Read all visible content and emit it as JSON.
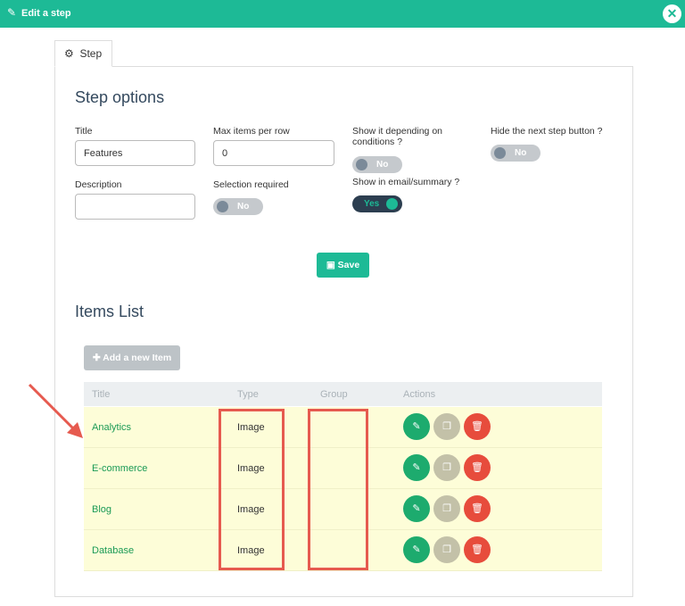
{
  "header": {
    "title": "Edit a step",
    "icon": "pencil-icon",
    "close_icon": "close-icon"
  },
  "tab": {
    "label": "Step",
    "icon": "gear-icon"
  },
  "options": {
    "heading": "Step options",
    "title_label": "Title",
    "title_value": "Features",
    "max_label": "Max items per row",
    "max_value": "0",
    "description_label": "Description",
    "description_value": "",
    "selection_label": "Selection required",
    "selection_value": "No",
    "conditions_label": "Show it depending on conditions ?",
    "conditions_value": "No",
    "email_label": "Show in email/summary ?",
    "email_value": "Yes",
    "hide_next_label": "Hide the next step button ?",
    "hide_next_value": "No",
    "save_label": "Save"
  },
  "items": {
    "heading": "Items List",
    "add_label": "Add a new Item",
    "columns": [
      "Title",
      "Type",
      "Group",
      "Actions"
    ],
    "rows": [
      {
        "title": "Analytics",
        "type": "Image",
        "group": ""
      },
      {
        "title": "E-commerce",
        "type": "Image",
        "group": ""
      },
      {
        "title": "Blog",
        "type": "Image",
        "group": ""
      },
      {
        "title": "Database",
        "type": "Image",
        "group": ""
      }
    ]
  },
  "colors": {
    "accent": "#1dba96",
    "annotation": "#e65a4f",
    "edit": "#1dab6e",
    "duplicate": "#c3c1a8",
    "delete": "#e74c3c"
  }
}
